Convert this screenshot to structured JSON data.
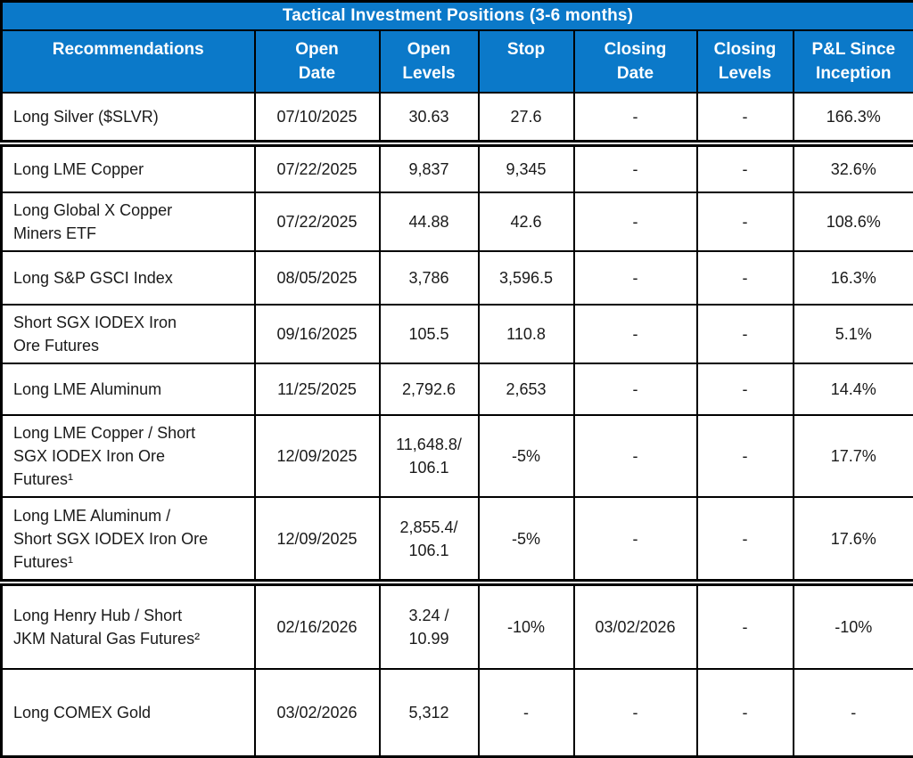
{
  "table": {
    "title": "Tactical Investment Positions (3-6 months)",
    "header_bg_color": "#0b79c9",
    "header_text_color": "#ffffff",
    "border_color": "#000000",
    "body_text_color": "#1a1a1a",
    "columns": [
      "Recommendations",
      "Open\nDate",
      "Open\nLevels",
      "Stop",
      "Closing\nDate",
      "Closing\nLevels",
      "P&L Since\nInception"
    ],
    "fields": [
      "recommendation",
      "open_date",
      "open_levels",
      "stop",
      "closing_date",
      "closing_levels",
      "pnl"
    ],
    "rows": [
      {
        "recommendation": "Long Silver ($SLVR)",
        "open_date": "07/10/2025",
        "open_levels": "30.63",
        "stop": "27.6",
        "closing_date": "-",
        "closing_levels": "-",
        "pnl": "166.3%",
        "gap_above": false
      },
      {
        "recommendation": "Long LME Copper",
        "open_date": "07/22/2025",
        "open_levels": "9,837",
        "stop": "9,345",
        "closing_date": "-",
        "closing_levels": "-",
        "pnl": "32.6%",
        "gap_above": true
      },
      {
        "recommendation": "Long Global X Copper\nMiners ETF",
        "open_date": "07/22/2025",
        "open_levels": "44.88",
        "stop": "42.6",
        "closing_date": "-",
        "closing_levels": "-",
        "pnl": "108.6%",
        "gap_above": false
      },
      {
        "recommendation": "Long S&P GSCI Index",
        "open_date": "08/05/2025",
        "open_levels": "3,786",
        "stop": "3,596.5",
        "closing_date": "-",
        "closing_levels": "-",
        "pnl": "16.3%",
        "gap_above": false
      },
      {
        "recommendation": "Short SGX IODEX Iron\nOre Futures",
        "open_date": "09/16/2025",
        "open_levels": "105.5",
        "stop": "110.8",
        "closing_date": "-",
        "closing_levels": "-",
        "pnl": "5.1%",
        "gap_above": false
      },
      {
        "recommendation": "Long LME Aluminum",
        "open_date": "11/25/2025",
        "open_levels": "2,792.6",
        "stop": "2,653",
        "closing_date": "-",
        "closing_levels": "-",
        "pnl": "14.4%",
        "gap_above": false
      },
      {
        "recommendation": "Long LME Copper / Short\nSGX IODEX Iron Ore\nFutures¹",
        "open_date": "12/09/2025",
        "open_levels": "11,648.8/\n106.1",
        "stop": "-5%",
        "closing_date": "-",
        "closing_levels": "-",
        "pnl": "17.7%",
        "gap_above": false
      },
      {
        "recommendation": "Long LME Aluminum /\nShort SGX IODEX Iron Ore\nFutures¹",
        "open_date": "12/09/2025",
        "open_levels": "2,855.4/\n106.1",
        "stop": "-5%",
        "closing_date": "-",
        "closing_levels": "-",
        "pnl": "17.6%",
        "gap_above": false
      },
      {
        "recommendation": "Long Henry Hub / Short\nJKM Natural Gas Futures²",
        "open_date": "02/16/2026",
        "open_levels": "3.24 /\n10.99",
        "stop": "-10%",
        "closing_date": "03/02/2026",
        "closing_levels": "-",
        "pnl": "-10%",
        "gap_above": true
      },
      {
        "recommendation": "Long COMEX Gold",
        "open_date": "03/02/2026",
        "open_levels": "5,312",
        "stop": "-",
        "closing_date": "-",
        "closing_levels": "-",
        "pnl": "-",
        "gap_above": false
      }
    ]
  }
}
